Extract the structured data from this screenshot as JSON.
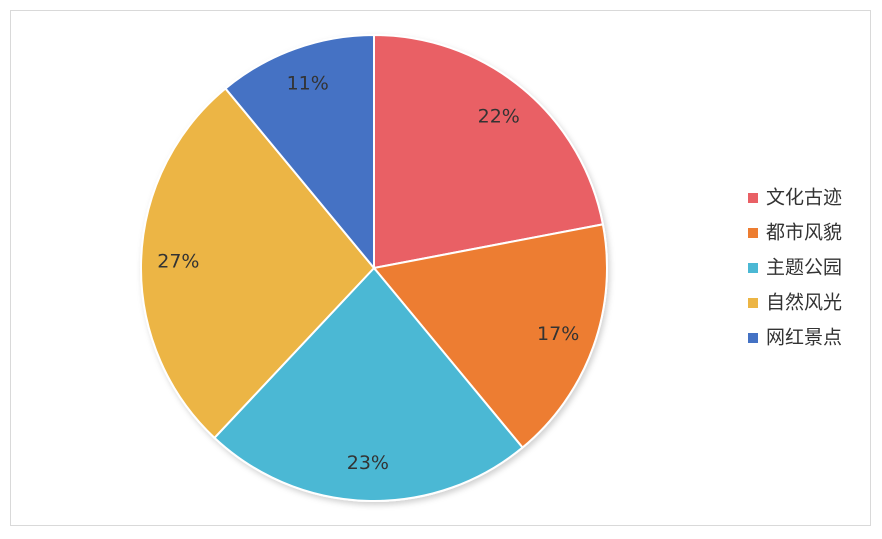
{
  "chart_data": {
    "type": "pie",
    "categories": [
      "文化古迹",
      "都市风貌",
      "主题公园",
      "自然风光",
      "网红景点"
    ],
    "values": [
      22,
      17,
      23,
      27,
      11
    ],
    "value_labels": [
      "22%",
      "17%",
      "23%",
      "27%",
      "11%"
    ],
    "colors": [
      "#e96065",
      "#ed7d31",
      "#4bb8d4",
      "#ecb545",
      "#4472c4"
    ],
    "legend": "right"
  }
}
